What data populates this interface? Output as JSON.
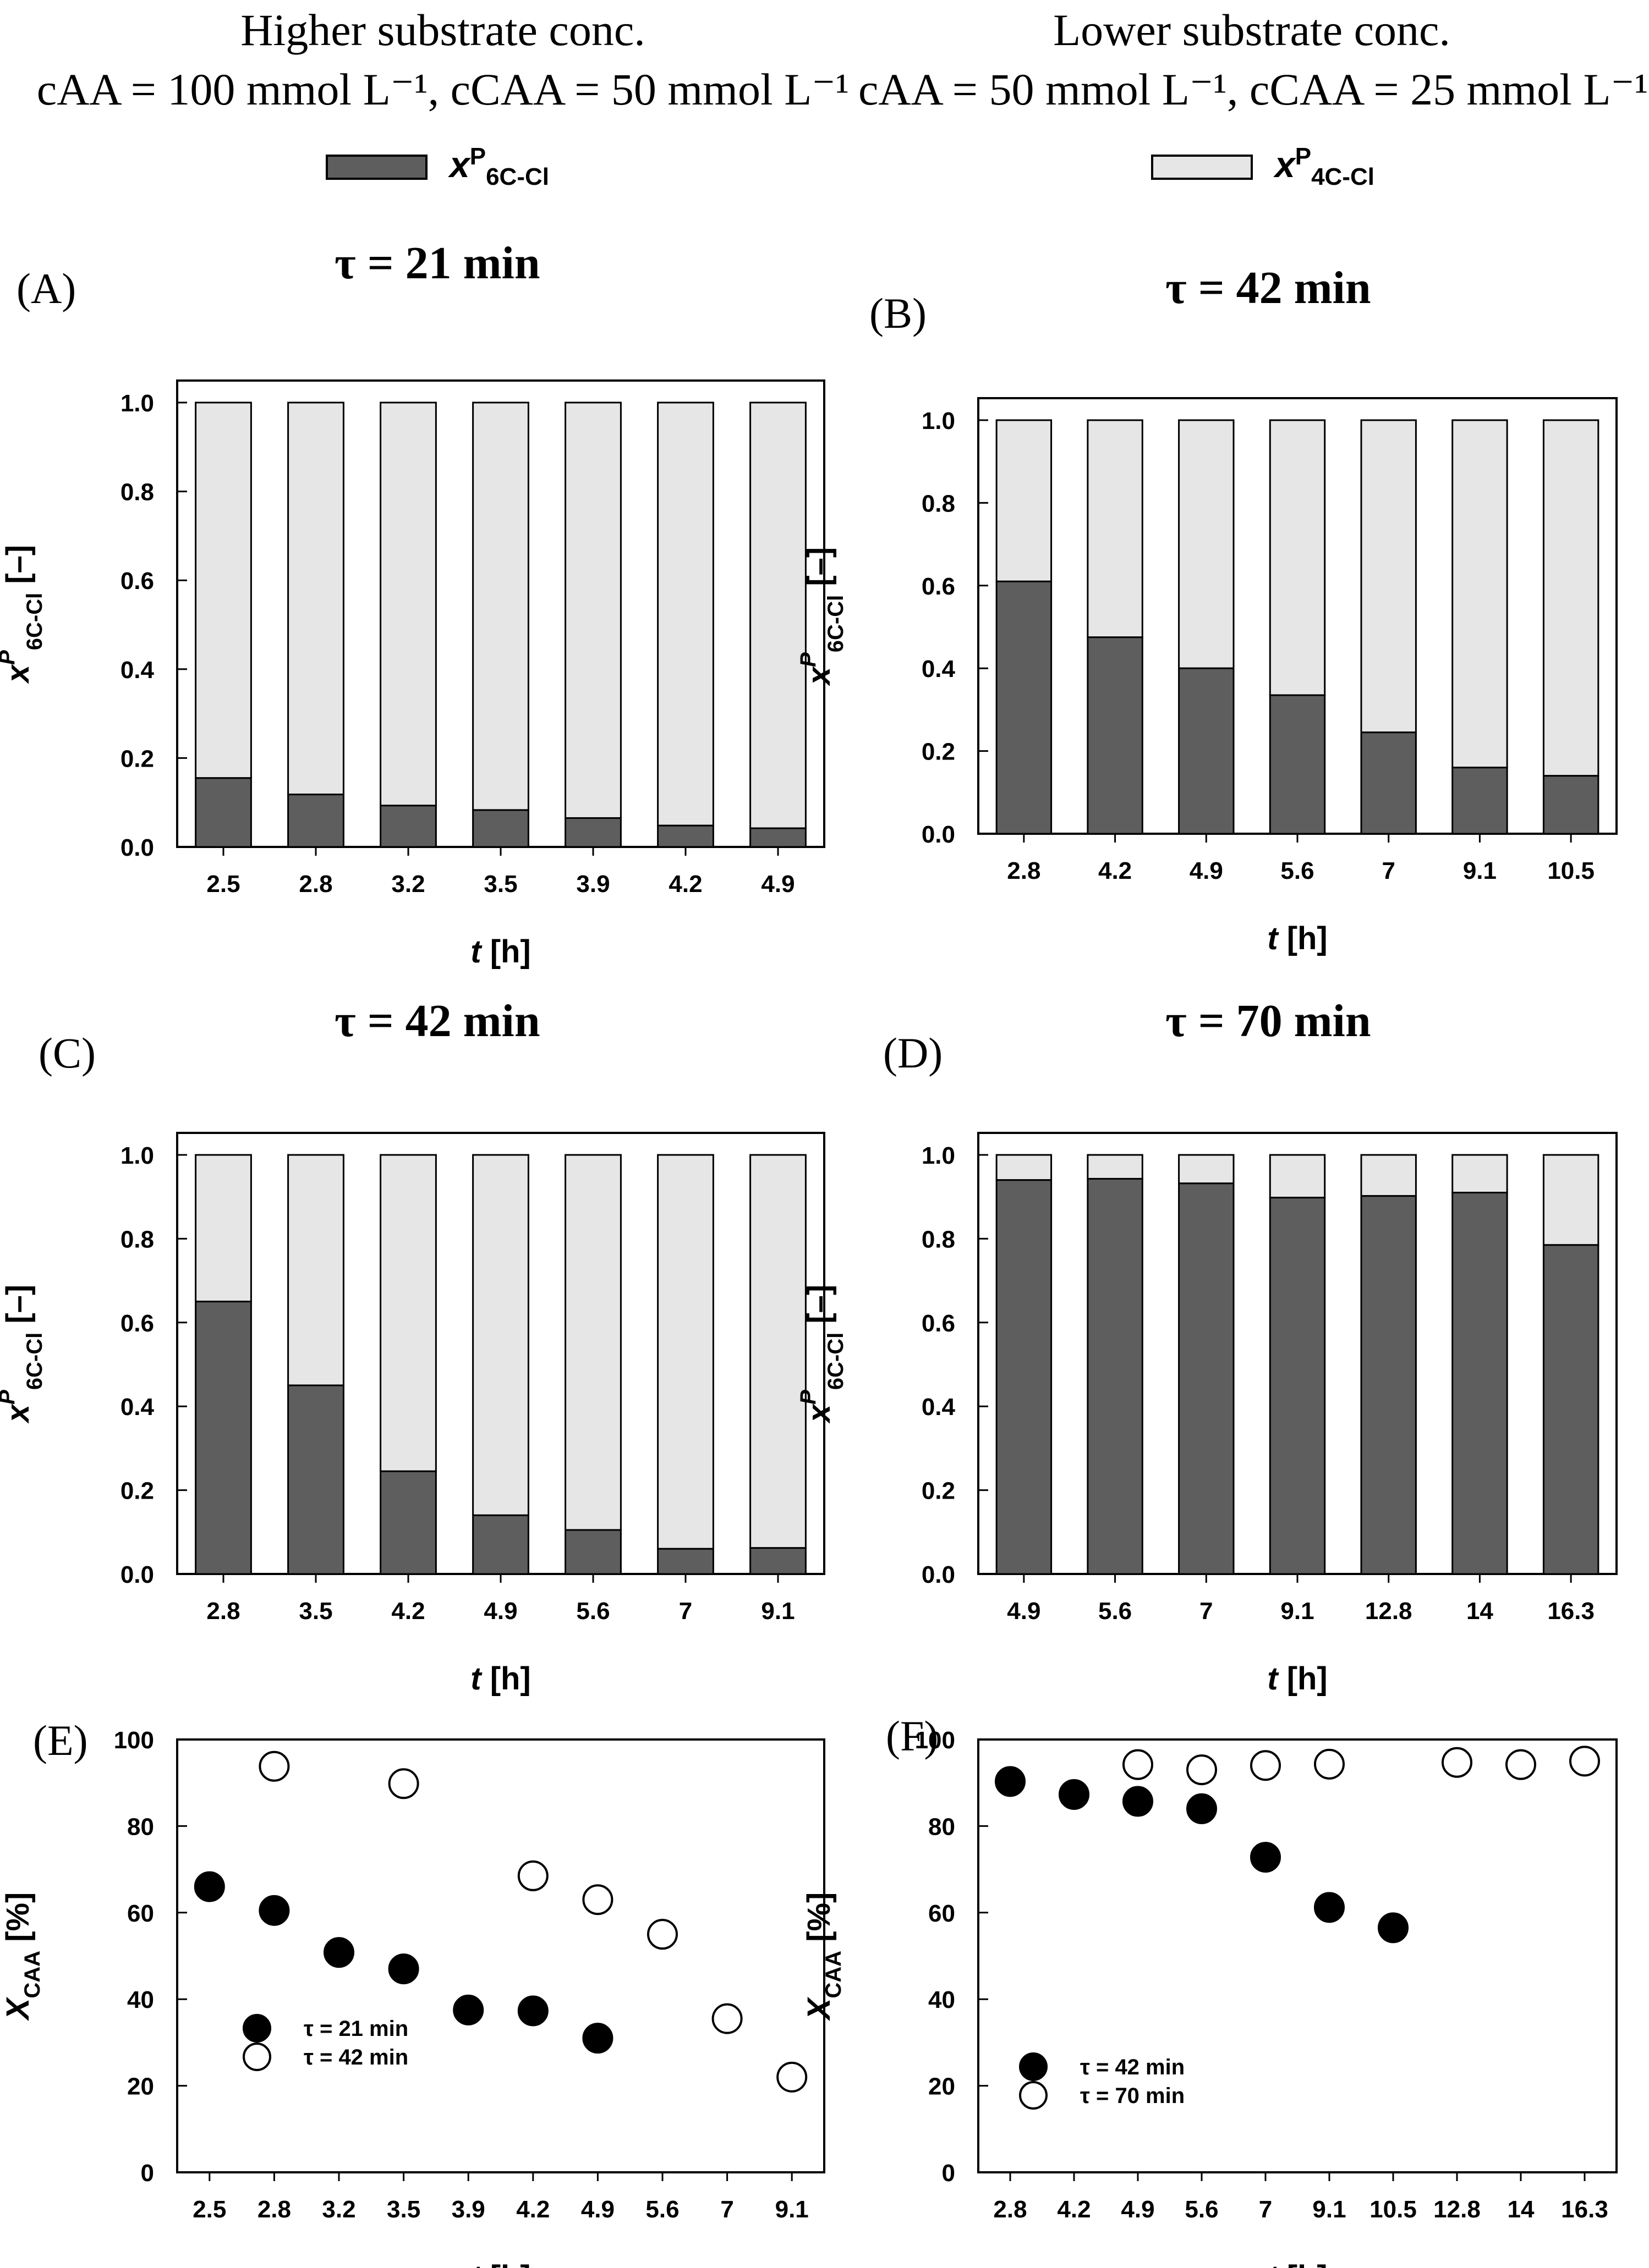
{
  "header": {
    "left_title": "Higher substrate conc.",
    "left_conc": "cAA = 100 mmol L⁻¹, cCAA = 50 mmol L⁻¹",
    "right_title": "Lower substrate conc.",
    "right_conc": "cAA = 50 mmol L⁻¹, cCAA = 25 mmol L⁻¹"
  },
  "legend": {
    "dark_base": "x",
    "dark_sup": "P",
    "dark_sub": "6C-Cl",
    "light_base": "x",
    "light_sup": "P",
    "light_sub": "4C-Cl",
    "dark_color": "#5e5e5e",
    "light_color": "#e6e6e6"
  },
  "panels": {
    "A": {
      "label": "(A)",
      "title": "τ = 21 min"
    },
    "B": {
      "label": "(B)",
      "title": "τ = 42 min"
    },
    "C": {
      "label": "(C)",
      "title": "τ = 42 min"
    },
    "D": {
      "label": "(D)",
      "title": "τ = 70 min"
    },
    "E": {
      "label": "(E)"
    },
    "F": {
      "label": "(F)"
    }
  },
  "chart_data": [
    {
      "id": "A",
      "type": "bar",
      "stacked": true,
      "title": "τ = 21 min",
      "xlabel": "t [h]",
      "ylabel": "x P 6C-Cl [–]",
      "ylim": [
        0,
        1.0
      ],
      "yticks": [
        "0.0",
        "0.2",
        "0.4",
        "0.6",
        "0.8",
        "1.0"
      ],
      "categories": [
        "2.5",
        "2.8",
        "3.2",
        "3.5",
        "3.9",
        "4.2",
        "4.9"
      ],
      "series": [
        {
          "name": "x P 6C-Cl",
          "values": [
            0.155,
            0.118,
            0.093,
            0.083,
            0.065,
            0.048,
            0.042
          ]
        },
        {
          "name": "x P 4C-Cl",
          "values": [
            0.845,
            0.882,
            0.907,
            0.917,
            0.935,
            0.952,
            0.958
          ]
        }
      ]
    },
    {
      "id": "B",
      "type": "bar",
      "stacked": true,
      "title": "τ = 42 min",
      "xlabel": "t [h]",
      "ylabel": "x P 6C-Cl [–]",
      "ylim": [
        0,
        1.0
      ],
      "yticks": [
        "0.0",
        "0.2",
        "0.4",
        "0.6",
        "0.8",
        "1.0"
      ],
      "categories": [
        "2.8",
        "4.2",
        "4.9",
        "5.6",
        "7",
        "9.1",
        "10.5"
      ],
      "series": [
        {
          "name": "x P 6C-Cl",
          "values": [
            0.61,
            0.475,
            0.4,
            0.335,
            0.245,
            0.16,
            0.14
          ]
        },
        {
          "name": "x P 4C-Cl",
          "values": [
            0.39,
            0.525,
            0.6,
            0.665,
            0.755,
            0.84,
            0.86
          ]
        }
      ]
    },
    {
      "id": "C",
      "type": "bar",
      "stacked": true,
      "title": "τ = 42 min",
      "xlabel": "t [h]",
      "ylabel": "x P 6C-Cl [–]",
      "ylim": [
        0,
        1.0
      ],
      "yticks": [
        "0.0",
        "0.2",
        "0.4",
        "0.6",
        "0.8",
        "1.0"
      ],
      "categories": [
        "2.8",
        "3.5",
        "4.2",
        "4.9",
        "5.6",
        "7",
        "9.1"
      ],
      "series": [
        {
          "name": "x P 6C-Cl",
          "values": [
            0.65,
            0.45,
            0.245,
            0.14,
            0.105,
            0.06,
            0.062
          ]
        },
        {
          "name": "x P 4C-Cl",
          "values": [
            0.35,
            0.55,
            0.755,
            0.86,
            0.895,
            0.94,
            0.938
          ]
        }
      ]
    },
    {
      "id": "D",
      "type": "bar",
      "stacked": true,
      "title": "τ = 70 min",
      "xlabel": "t [h]",
      "ylabel": "x P 6C-Cl [–]",
      "ylim": [
        0,
        1.0
      ],
      "yticks": [
        "0.0",
        "0.2",
        "0.4",
        "0.6",
        "0.8",
        "1.0"
      ],
      "categories": [
        "4.9",
        "5.6",
        "7",
        "9.1",
        "12.8",
        "14",
        "16.3"
      ],
      "series": [
        {
          "name": "x P 6C-Cl",
          "values": [
            0.94,
            0.943,
            0.932,
            0.898,
            0.902,
            0.91,
            0.785
          ]
        },
        {
          "name": "x P 4C-Cl",
          "values": [
            0.06,
            0.057,
            0.068,
            0.102,
            0.098,
            0.09,
            0.215
          ]
        }
      ]
    },
    {
      "id": "E",
      "type": "scatter",
      "xlabel": "t [h]",
      "ylabel": "X CAA [%]",
      "ylim": [
        0,
        100
      ],
      "yticks": [
        "0",
        "20",
        "40",
        "60",
        "80",
        "100"
      ],
      "categories": [
        "2.5",
        "2.8",
        "3.2",
        "3.5",
        "3.9",
        "4.2",
        "4.9",
        "5.6",
        "7",
        "9.1"
      ],
      "series": [
        {
          "name": "τ = 21 min",
          "marker": "filled",
          "x": [
            "2.5",
            "2.8",
            "3.2",
            "3.5",
            "3.9",
            "4.2",
            "4.9"
          ],
          "values": [
            66,
            60.5,
            50.8,
            47,
            37.5,
            37.3,
            31
          ]
        },
        {
          "name": "τ = 42 min",
          "marker": "open",
          "x": [
            "2.8",
            "3.5",
            "4.2",
            "4.9",
            "5.6",
            "7",
            "9.1"
          ],
          "values": [
            93.8,
            89.8,
            68.5,
            63,
            55,
            35.5,
            22
          ]
        }
      ]
    },
    {
      "id": "F",
      "type": "scatter",
      "xlabel": "t [h]",
      "ylabel": "X CAA [%]",
      "ylim": [
        0,
        100
      ],
      "yticks": [
        "0",
        "20",
        "40",
        "60",
        "80",
        "100"
      ],
      "categories": [
        "2.8",
        "4.2",
        "4.9",
        "5.6",
        "7",
        "9.1",
        "10.5",
        "12.8",
        "14",
        "16.3"
      ],
      "series": [
        {
          "name": "τ = 42 min",
          "marker": "filled",
          "x": [
            "2.8",
            "4.2",
            "4.9",
            "5.6",
            "7",
            "9.1",
            "10.5"
          ],
          "values": [
            90.3,
            87.3,
            85.7,
            84,
            72.8,
            61.2,
            56.5
          ]
        },
        {
          "name": "τ = 70 min",
          "marker": "open",
          "x": [
            "4.9",
            "5.6",
            "7",
            "9.1",
            "12.8",
            "14",
            "16.3"
          ],
          "values": [
            94.2,
            93,
            94,
            94.3,
            94.7,
            94.2,
            95
          ]
        }
      ]
    }
  ]
}
